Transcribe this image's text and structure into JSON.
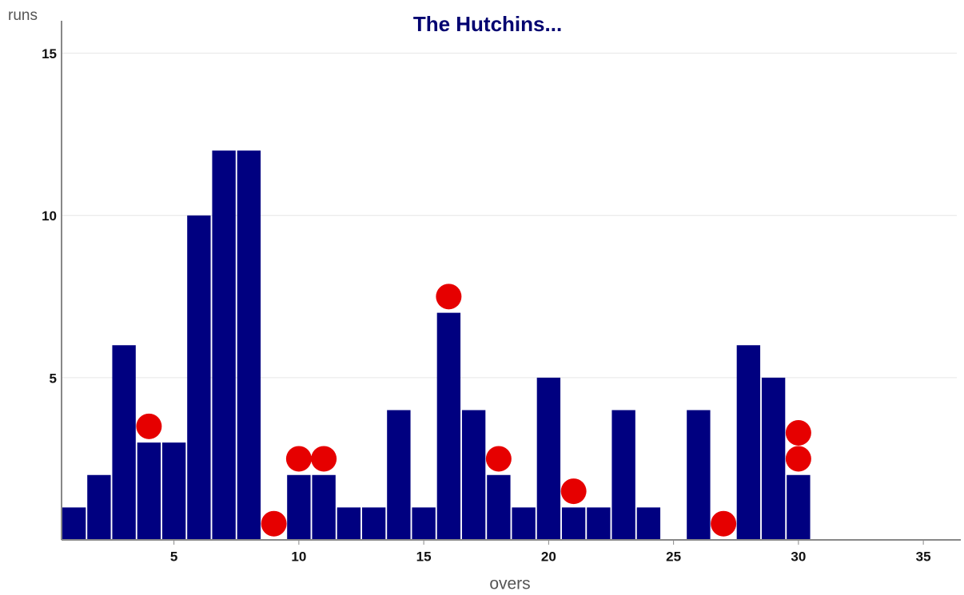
{
  "chart_data": {
    "type": "bar",
    "title": "The Hutchins...",
    "x_label": "overs",
    "y_label": "runs",
    "x": [
      1,
      2,
      3,
      4,
      5,
      6,
      7,
      8,
      9,
      10,
      11,
      12,
      13,
      14,
      15,
      16,
      17,
      18,
      19,
      20,
      21,
      22,
      23,
      24,
      25,
      26,
      27,
      28,
      29,
      30
    ],
    "values": [
      1,
      2,
      6,
      3,
      3,
      10,
      12,
      12,
      0,
      2,
      2,
      1,
      1,
      4,
      1,
      7,
      4,
      2,
      1,
      5,
      1,
      1,
      4,
      1,
      0,
      4,
      0,
      6,
      5,
      2
    ],
    "color": "#000080",
    "wickets": {
      "overs": [
        4,
        9,
        10,
        11,
        16,
        18,
        21,
        27,
        30,
        30
      ],
      "color": "#e60000"
    },
    "xlim": [
      0.5,
      36.5
    ],
    "xticks": [
      5,
      10,
      15,
      20,
      25,
      30,
      35
    ],
    "ylim": [
      0,
      16
    ],
    "yticks": [
      5,
      10,
      15
    ],
    "grid": true
  }
}
